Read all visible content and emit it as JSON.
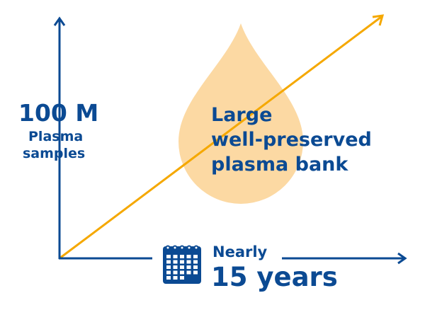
{
  "y_axis": {
    "value": "100 M",
    "label_line1": "Plasma",
    "label_line2": "samples"
  },
  "drop": {
    "line1": "Large",
    "line2": "well-preserved",
    "line3": "plasma bank"
  },
  "x_axis": {
    "prefix": "Nearly",
    "value": "15 years",
    "icon": "calendar-icon"
  },
  "colors": {
    "blue": "#0b4a93",
    "orange": "#f5a800",
    "drop": "#fcd9a3"
  }
}
